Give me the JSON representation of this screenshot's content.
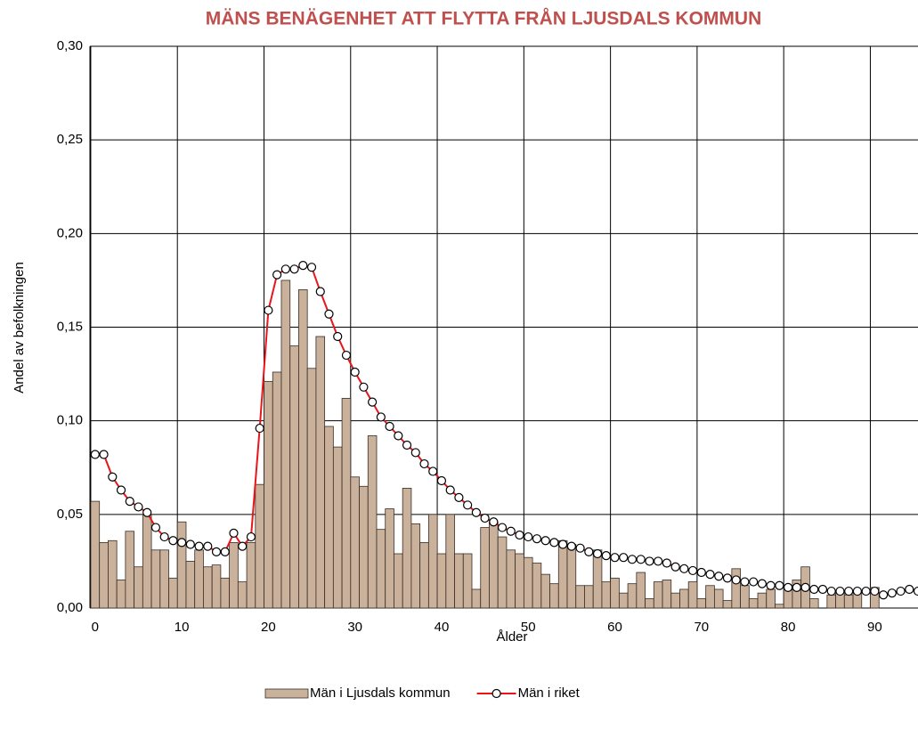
{
  "chart_data": {
    "type": "combo",
    "title": "MÄNS BENÄGENHET ATT FLYTTA FRÅN LJUSDALS KOMMUN",
    "x_label": "Ålder",
    "y_label": "Andel av befolkningen",
    "x": [
      0,
      1,
      2,
      3,
      4,
      5,
      6,
      7,
      8,
      9,
      10,
      11,
      12,
      13,
      14,
      15,
      16,
      17,
      18,
      19,
      20,
      21,
      22,
      23,
      24,
      25,
      26,
      27,
      28,
      29,
      30,
      31,
      32,
      33,
      34,
      35,
      36,
      37,
      38,
      39,
      40,
      41,
      42,
      43,
      44,
      45,
      46,
      47,
      48,
      49,
      50,
      51,
      52,
      53,
      54,
      55,
      56,
      57,
      58,
      59,
      60,
      61,
      62,
      63,
      64,
      65,
      66,
      67,
      68,
      69,
      70,
      71,
      72,
      73,
      74,
      75,
      76,
      77,
      78,
      79,
      80,
      81,
      82,
      83,
      84,
      85,
      86,
      87,
      88,
      89,
      90,
      91,
      92,
      93,
      94,
      95
    ],
    "series": [
      {
        "name": "Män i Ljusdals kommun",
        "type": "bar",
        "color": "#c9b19b",
        "values": [
          0.057,
          0.035,
          0.036,
          0.015,
          0.041,
          0.022,
          0.05,
          0.031,
          0.031,
          0.016,
          0.046,
          0.025,
          0.031,
          0.022,
          0.023,
          0.016,
          0.035,
          0.014,
          0.035,
          0.066,
          0.121,
          0.126,
          0.175,
          0.14,
          0.17,
          0.128,
          0.145,
          0.097,
          0.086,
          0.112,
          0.07,
          0.065,
          0.092,
          0.042,
          0.053,
          0.029,
          0.064,
          0.045,
          0.035,
          0.05,
          0.029,
          0.05,
          0.029,
          0.029,
          0.01,
          0.043,
          0.046,
          0.038,
          0.031,
          0.029,
          0.027,
          0.024,
          0.018,
          0.013,
          0.036,
          0.034,
          0.012,
          0.012,
          0.031,
          0.014,
          0.016,
          0.008,
          0.013,
          0.019,
          0.005,
          0.014,
          0.015,
          0.008,
          0.01,
          0.014,
          0.005,
          0.012,
          0.01,
          0.004,
          0.021,
          0.012,
          0.005,
          0.008,
          0.01,
          0.002,
          0.01,
          0.015,
          0.022,
          0.005,
          0,
          0.007,
          0.008,
          0.007,
          0.009,
          0,
          0.011,
          null,
          null,
          null,
          null,
          null
        ]
      },
      {
        "name": "Män i riket",
        "type": "line",
        "color": "#e8151b",
        "values": [
          0.082,
          0.082,
          0.07,
          0.063,
          0.057,
          0.054,
          0.051,
          0.043,
          0.038,
          0.036,
          0.035,
          0.034,
          0.033,
          0.033,
          0.03,
          0.03,
          0.04,
          0.033,
          0.038,
          0.096,
          0.159,
          0.178,
          0.181,
          0.181,
          0.183,
          0.182,
          0.169,
          0.157,
          0.145,
          0.135,
          0.126,
          0.118,
          0.11,
          0.102,
          0.097,
          0.092,
          0.087,
          0.083,
          0.077,
          0.073,
          0.068,
          0.063,
          0.059,
          0.055,
          0.051,
          0.048,
          0.046,
          0.043,
          0.041,
          0.039,
          0.038,
          0.037,
          0.036,
          0.035,
          0.034,
          0.033,
          0.032,
          0.03,
          0.029,
          0.028,
          0.027,
          0.027,
          0.026,
          0.026,
          0.025,
          0.025,
          0.024,
          0.022,
          0.021,
          0.02,
          0.019,
          0.018,
          0.017,
          0.016,
          0.015,
          0.014,
          0.014,
          0.013,
          0.012,
          0.012,
          0.011,
          0.011,
          0.011,
          0.01,
          0.01,
          0.009,
          0.009,
          0.009,
          0.009,
          0.009,
          0.009,
          0.007,
          0.008,
          0.009,
          0.01,
          0.009
        ]
      }
    ],
    "xlim": [
      -0.6,
      95
    ],
    "xticks": [
      0,
      10,
      20,
      30,
      40,
      50,
      60,
      70,
      80,
      90
    ],
    "ylim": [
      0,
      0.3
    ],
    "yticks": [
      {
        "value": 0,
        "label": "0,00"
      },
      {
        "value": 0.05,
        "label": "0,05"
      },
      {
        "value": 0.1,
        "label": "0,10"
      },
      {
        "value": 0.15,
        "label": "0,15"
      },
      {
        "value": 0.2,
        "label": "0,20"
      },
      {
        "value": 0.25,
        "label": "0,25"
      },
      {
        "value": 0.3,
        "label": "0,30"
      }
    ],
    "grid": true,
    "legend": "bottom"
  }
}
